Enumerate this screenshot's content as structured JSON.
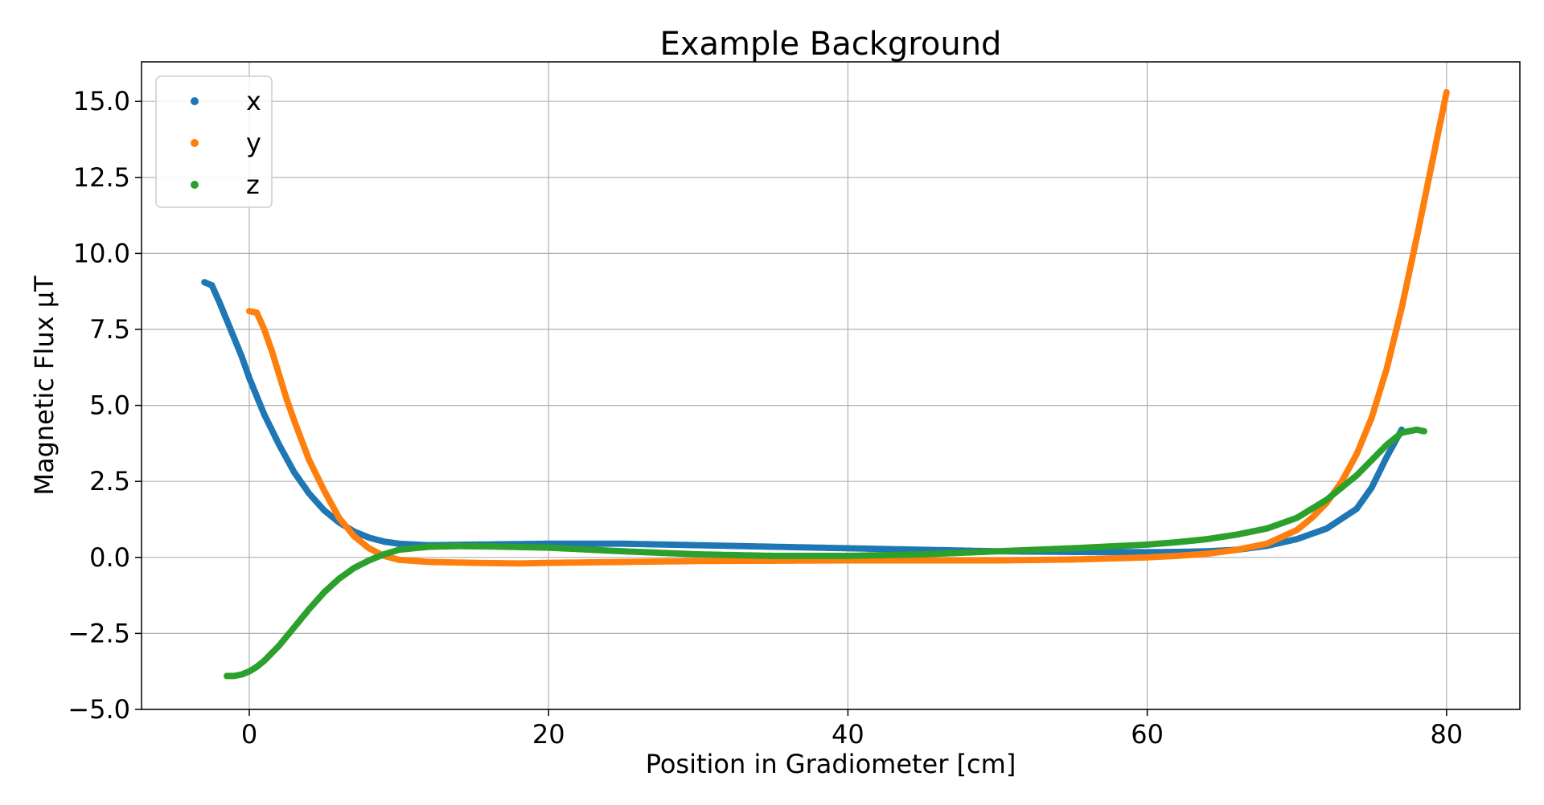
{
  "chart_data": {
    "type": "scatter",
    "title": "Example Background",
    "xlabel": "Position in Gradiometer [cm]",
    "ylabel": "Magnetic Flux μT",
    "xlim": [
      -7.2,
      84.9
    ],
    "ylim": [
      -5.0,
      16.3
    ],
    "xticks": [
      0,
      20,
      40,
      60,
      80
    ],
    "yticks": [
      -5.0,
      -2.5,
      0.0,
      2.5,
      5.0,
      7.5,
      10.0,
      12.5,
      15.0
    ],
    "xtick_labels": [
      "0",
      "20",
      "40",
      "60",
      "80"
    ],
    "ytick_labels": [
      "−5.0",
      "−2.5",
      "0.0",
      "2.5",
      "5.0",
      "7.5",
      "10.0",
      "12.5",
      "15.0"
    ],
    "grid": true,
    "legend_position": "upper-left",
    "series": [
      {
        "name": "x",
        "color": "#1f77b4",
        "x": [
          -3.0,
          -2.5,
          -2.0,
          -1.5,
          -1.0,
          -0.5,
          0.0,
          0.5,
          1.0,
          2.0,
          3.0,
          4.0,
          5.0,
          6.0,
          7.0,
          8.0,
          9.0,
          10.0,
          12.0,
          15.0,
          20.0,
          25.0,
          30.0,
          35.0,
          40.0,
          45.0,
          50.0,
          55.0,
          60.0,
          62.0,
          64.0,
          66.0,
          68.0,
          70.0,
          72.0,
          74.0,
          75.0,
          76.0,
          77.0
        ],
        "y": [
          9.05,
          8.95,
          8.4,
          7.8,
          7.2,
          6.6,
          5.9,
          5.3,
          4.7,
          3.7,
          2.8,
          2.1,
          1.55,
          1.15,
          0.85,
          0.65,
          0.52,
          0.45,
          0.4,
          0.42,
          0.45,
          0.45,
          0.4,
          0.35,
          0.3,
          0.25,
          0.2,
          0.18,
          0.17,
          0.18,
          0.2,
          0.25,
          0.38,
          0.6,
          0.95,
          1.6,
          2.3,
          3.3,
          4.2
        ]
      },
      {
        "name": "y",
        "color": "#ff7f0e",
        "x": [
          0.0,
          0.5,
          1.0,
          1.5,
          2.0,
          2.5,
          3.0,
          4.0,
          5.0,
          6.0,
          7.0,
          8.0,
          9.0,
          10.0,
          12.0,
          15.0,
          18.0,
          20.0,
          25.0,
          30.0,
          40.0,
          50.0,
          55.0,
          60.0,
          62.0,
          64.0,
          66.0,
          68.0,
          70.0,
          71.0,
          72.0,
          73.0,
          74.0,
          75.0,
          76.0,
          77.0,
          78.0,
          79.0,
          80.0
        ],
        "y": [
          8.1,
          8.05,
          7.5,
          6.8,
          6.0,
          5.2,
          4.5,
          3.2,
          2.2,
          1.3,
          0.7,
          0.3,
          0.05,
          -0.08,
          -0.15,
          -0.18,
          -0.2,
          -0.18,
          -0.15,
          -0.12,
          -0.1,
          -0.1,
          -0.07,
          0.0,
          0.05,
          0.12,
          0.25,
          0.45,
          0.9,
          1.3,
          1.8,
          2.5,
          3.4,
          4.6,
          6.2,
          8.2,
          10.5,
          12.9,
          15.3
        ]
      },
      {
        "name": "z",
        "color": "#2ca02c",
        "x": [
          -1.5,
          -1.0,
          -0.5,
          0.0,
          0.5,
          1.0,
          2.0,
          3.0,
          4.0,
          5.0,
          6.0,
          7.0,
          8.0,
          9.0,
          10.0,
          12.0,
          14.0,
          16.0,
          18.0,
          20.0,
          25.0,
          30.0,
          35.0,
          40.0,
          45.0,
          50.0,
          55.0,
          60.0,
          62.0,
          64.0,
          66.0,
          68.0,
          70.0,
          72.0,
          74.0,
          75.0,
          76.0,
          77.0,
          78.0,
          78.5
        ],
        "y": [
          -3.9,
          -3.9,
          -3.85,
          -3.75,
          -3.6,
          -3.4,
          -2.9,
          -2.3,
          -1.7,
          -1.15,
          -0.7,
          -0.35,
          -0.1,
          0.1,
          0.25,
          0.35,
          0.37,
          0.36,
          0.34,
          0.32,
          0.2,
          0.1,
          0.05,
          0.05,
          0.1,
          0.2,
          0.3,
          0.42,
          0.5,
          0.6,
          0.75,
          0.95,
          1.3,
          1.9,
          2.7,
          3.2,
          3.7,
          4.1,
          4.2,
          4.15
        ]
      }
    ]
  }
}
